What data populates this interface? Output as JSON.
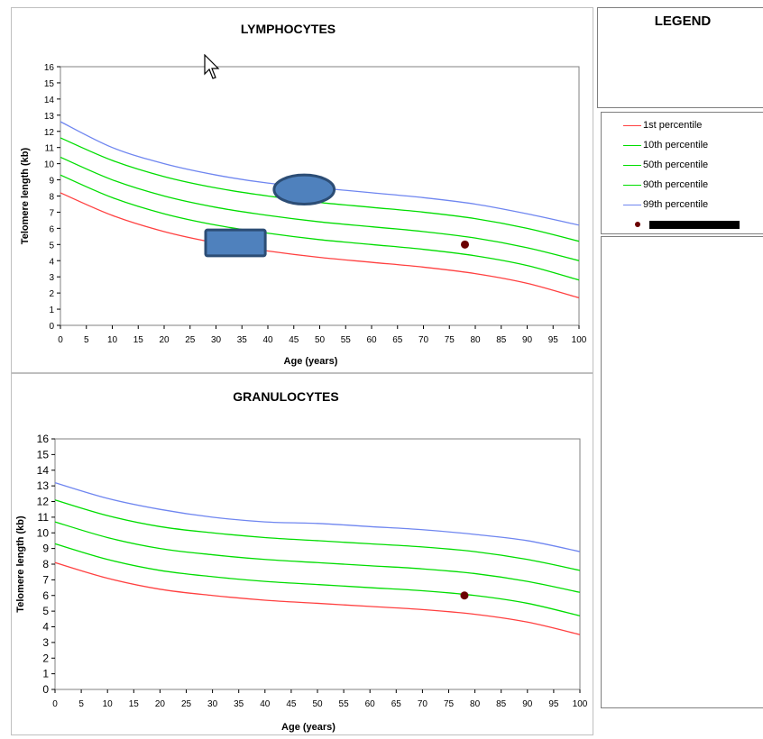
{
  "colors": {
    "p1": "#ff4040",
    "p10": "#00dd00",
    "p50": "#00dd00",
    "p90": "#00dd00",
    "p99": "#6f86f0",
    "patient": "#6b0000",
    "shape_fill": "#4f81bd",
    "shape_stroke": "#2c4d75"
  },
  "legend": {
    "title": "LEGEND",
    "items": [
      {
        "label": "1st percentile",
        "color": "#ff4040"
      },
      {
        "label": "10th percentile",
        "color": "#00dd00"
      },
      {
        "label": "50th percentile",
        "color": "#00dd00"
      },
      {
        "label": "90th percentile",
        "color": "#00dd00"
      },
      {
        "label": "99th percentile",
        "color": "#6f86f0"
      }
    ],
    "marker_label_redacted": true
  },
  "chart_data": [
    {
      "type": "line",
      "title": "LYMPHOCYTES",
      "xlabel": "Age (years)",
      "ylabel": "Telomere length (kb)",
      "xlim": [
        0,
        100
      ],
      "ylim": [
        0,
        16
      ],
      "xticks": [
        0,
        5,
        10,
        15,
        20,
        25,
        30,
        35,
        40,
        45,
        50,
        55,
        60,
        65,
        70,
        75,
        80,
        85,
        90,
        95,
        100
      ],
      "yticks": [
        0,
        1,
        2,
        3,
        4,
        5,
        6,
        7,
        8,
        9,
        10,
        11,
        12,
        13,
        14,
        15,
        16
      ],
      "grid": false,
      "x": [
        0,
        10,
        20,
        30,
        40,
        50,
        60,
        70,
        80,
        90,
        100
      ],
      "series": [
        {
          "name": "1st percentile",
          "values": [
            8.2,
            6.8,
            5.8,
            5.1,
            4.6,
            4.2,
            3.9,
            3.6,
            3.2,
            2.6,
            1.7
          ]
        },
        {
          "name": "10th percentile",
          "values": [
            9.3,
            7.9,
            6.9,
            6.2,
            5.7,
            5.3,
            5.0,
            4.7,
            4.3,
            3.7,
            2.8
          ]
        },
        {
          "name": "50th percentile",
          "values": [
            10.4,
            9.0,
            8.0,
            7.3,
            6.8,
            6.4,
            6.1,
            5.8,
            5.4,
            4.8,
            4.0
          ]
        },
        {
          "name": "90th percentile",
          "values": [
            11.6,
            10.2,
            9.2,
            8.5,
            8.0,
            7.6,
            7.3,
            7.0,
            6.6,
            6.0,
            5.2
          ]
        },
        {
          "name": "99th percentile",
          "values": [
            12.6,
            11.0,
            10.0,
            9.3,
            8.8,
            8.5,
            8.2,
            7.9,
            7.5,
            6.9,
            6.2
          ]
        }
      ],
      "patient_point": {
        "x": 78,
        "y": 5.0
      },
      "overlay_shapes": [
        {
          "shape": "ellipse",
          "cx": 47,
          "cy": 8.4,
          "rx": 5.8,
          "ry": 0.9
        },
        {
          "shape": "rect",
          "x0": 28,
          "x1": 39.5,
          "y0": 4.3,
          "y1": 5.9
        }
      ]
    },
    {
      "type": "line",
      "title": "GRANULOCYTES",
      "xlabel": "Age (years)",
      "ylabel": "Telomere length (kb)",
      "xlim": [
        0,
        100
      ],
      "ylim": [
        0,
        16
      ],
      "xticks": [
        0,
        5,
        10,
        15,
        20,
        25,
        30,
        35,
        40,
        45,
        50,
        55,
        60,
        65,
        70,
        75,
        80,
        85,
        90,
        95,
        100
      ],
      "yticks": [
        0,
        1,
        2,
        3,
        4,
        5,
        6,
        7,
        8,
        9,
        10,
        11,
        12,
        13,
        14,
        15,
        16
      ],
      "grid": false,
      "x": [
        0,
        10,
        20,
        30,
        40,
        50,
        60,
        70,
        80,
        90,
        100
      ],
      "series": [
        {
          "name": "1st percentile",
          "values": [
            8.1,
            7.1,
            6.4,
            6.0,
            5.7,
            5.5,
            5.3,
            5.1,
            4.8,
            4.3,
            3.5
          ]
        },
        {
          "name": "10th percentile",
          "values": [
            9.3,
            8.3,
            7.6,
            7.2,
            6.9,
            6.7,
            6.5,
            6.3,
            6.0,
            5.5,
            4.7
          ]
        },
        {
          "name": "50th percentile",
          "values": [
            10.7,
            9.7,
            9.0,
            8.6,
            8.3,
            8.1,
            7.9,
            7.7,
            7.4,
            6.9,
            6.2
          ]
        },
        {
          "name": "90th percentile",
          "values": [
            12.1,
            11.1,
            10.4,
            10.0,
            9.7,
            9.5,
            9.3,
            9.1,
            8.8,
            8.3,
            7.6
          ]
        },
        {
          "name": "99th percentile",
          "values": [
            13.2,
            12.2,
            11.5,
            11.0,
            10.7,
            10.6,
            10.4,
            10.2,
            9.9,
            9.5,
            8.8
          ]
        }
      ],
      "patient_point": {
        "x": 78,
        "y": 6.0
      }
    }
  ]
}
